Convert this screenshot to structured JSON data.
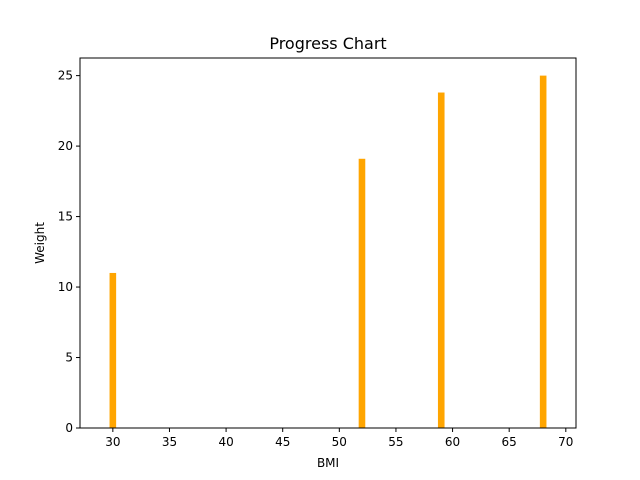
{
  "chart_data": {
    "type": "bar",
    "title": "Progress Chart",
    "xlabel": "BMI",
    "ylabel": "Weight",
    "x": [
      30,
      52,
      59,
      68
    ],
    "values": [
      11.0,
      19.1,
      23.8,
      25.0
    ],
    "xlim": [
      27.1,
      70.9
    ],
    "ylim": [
      0,
      26.25
    ],
    "xticks": [
      30,
      35,
      40,
      45,
      50,
      55,
      60,
      65,
      70
    ],
    "yticks": [
      0,
      5,
      10,
      15,
      20,
      25
    ],
    "bar_color": "#FFA500",
    "grid": false,
    "legend": "none"
  }
}
